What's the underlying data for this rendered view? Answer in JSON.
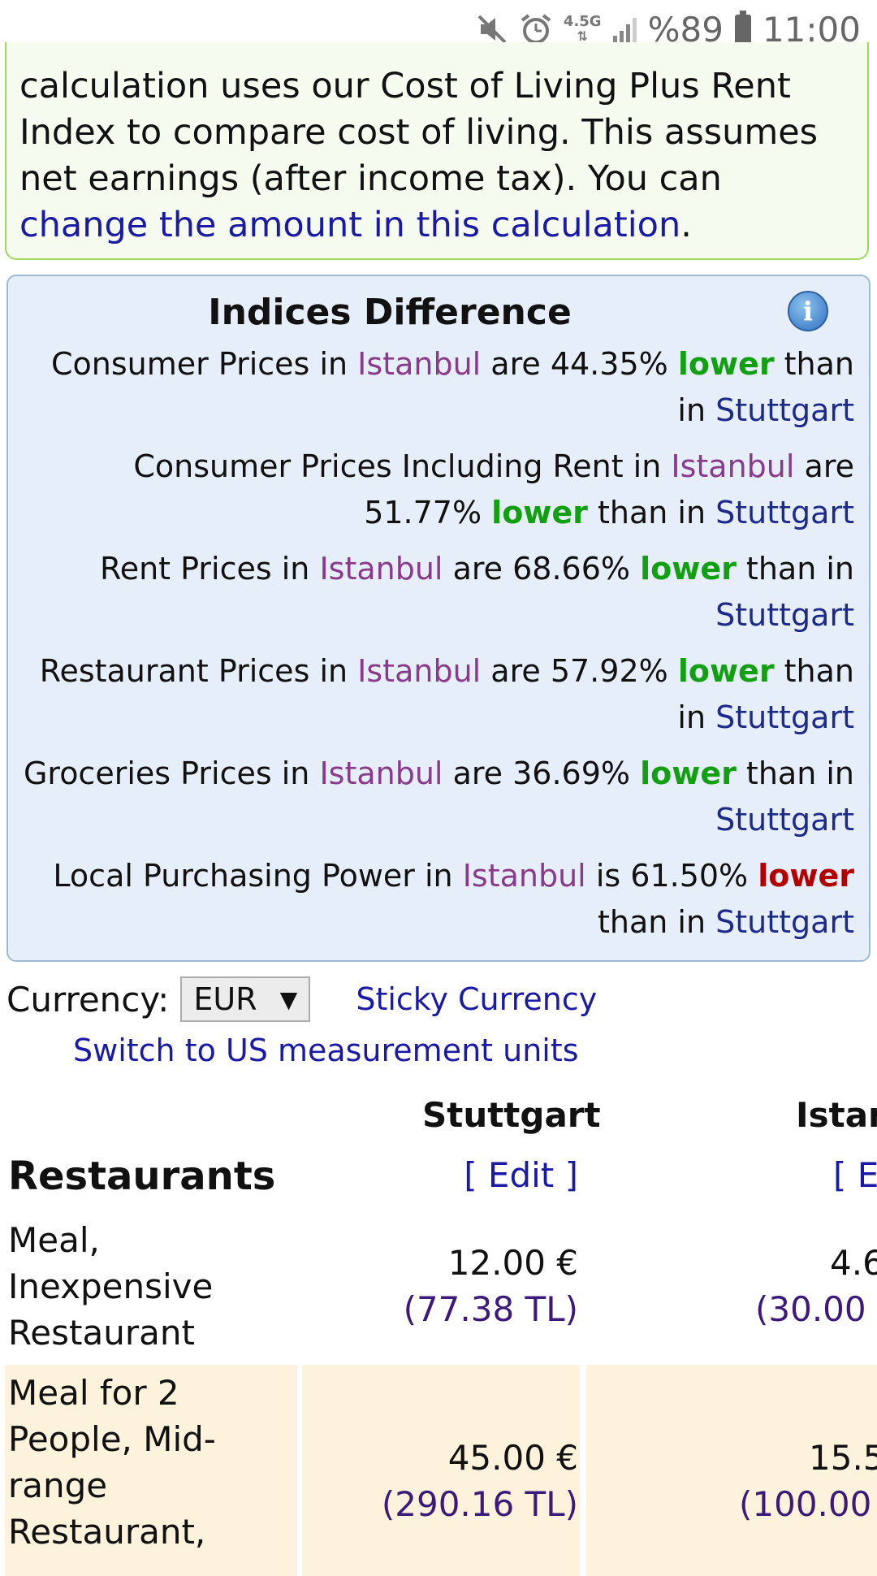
{
  "status_bar": {
    "net_label": "4.5G",
    "battery_text": "%89",
    "time": "11:00",
    "icons": [
      "mute-icon",
      "alarm-icon",
      "signal-icon",
      "battery-icon"
    ]
  },
  "intro": {
    "text_before_link": "calculation uses our Cost of Living Plus Rent Index to compare cost of living. This assumes net earnings (after income tax). You can ",
    "link_text": "change the amount in this calculation",
    "text_after_link": "."
  },
  "indices": {
    "title": "Indices Difference",
    "info_icon_glyph": "i",
    "lines": [
      {
        "pre": "Consumer Prices in ",
        "city_a": "Istanbul",
        "mid": " are 44.35% ",
        "word": "lower",
        "word_color": "green",
        "post": " than in ",
        "city_b": "Stuttgart"
      },
      {
        "pre": "Consumer Prices Including Rent in ",
        "city_a": "Istanbul",
        "mid": " are 51.77% ",
        "word": "lower",
        "word_color": "green",
        "post": " than in ",
        "city_b": "Stuttgart"
      },
      {
        "pre": "Rent Prices in ",
        "city_a": "Istanbul",
        "mid": " are 68.66% ",
        "word": "lower",
        "word_color": "green",
        "post": " than in ",
        "city_b": "Stuttgart"
      },
      {
        "pre": "Restaurant Prices in ",
        "city_a": "Istanbul",
        "mid": " are 57.92% ",
        "word": "lower",
        "word_color": "green",
        "post": " than in ",
        "city_b": "Stuttgart"
      },
      {
        "pre": "Groceries Prices in ",
        "city_a": "Istanbul",
        "mid": " are 36.69% ",
        "word": "lower",
        "word_color": "green",
        "post": " than in ",
        "city_b": "Stuttgart"
      },
      {
        "pre": "Local Purchasing Power in ",
        "city_a": "Istanbul",
        "mid": " is 61.50% ",
        "word": "lower",
        "word_color": "red",
        "post": " than in ",
        "city_b": "Stuttgart"
      }
    ]
  },
  "currency": {
    "label": "Currency:",
    "selected": "EUR",
    "arrow": "▼",
    "sticky_link": "Sticky Currency",
    "units_link": "Switch to US measurement units"
  },
  "table": {
    "city_1": "Stuttgart",
    "city_2": "Istan",
    "category": "Restaurants",
    "edit_1": "[ Edit ]",
    "edit_2": "[ Ec",
    "rows": [
      {
        "name": "Meal, Inexpensive Restaurant",
        "p1": "12.00 €",
        "t1": "(77.38 TL)",
        "p2": "4.6",
        "t2": "(30.00"
      },
      {
        "name": "Meal for 2 People, Mid-range Restaurant,",
        "p1": "45.00 €",
        "t1": "(290.16 TL)",
        "p2": "15.5",
        "t2": "(100.00"
      }
    ]
  }
}
